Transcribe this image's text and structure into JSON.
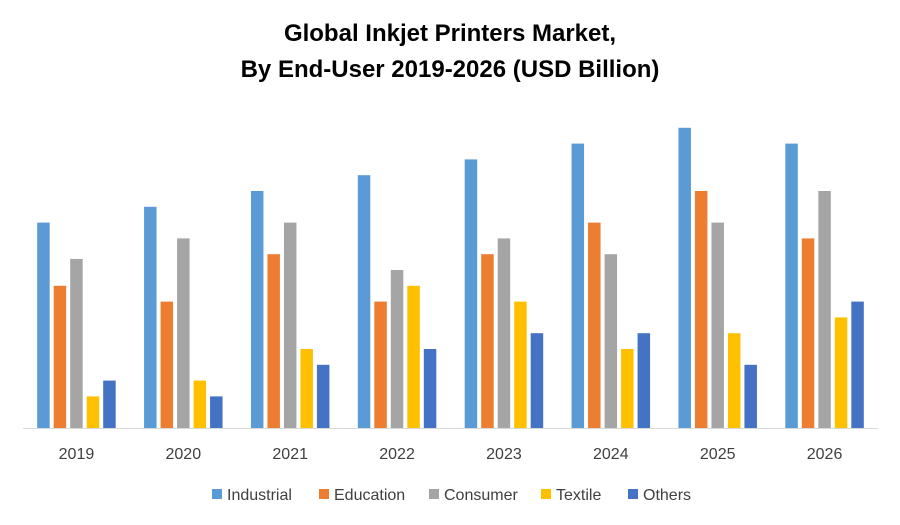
{
  "title_lines": [
    "Global Inkjet Printers Market,",
    "By End-User 2019-2026 (USD Billion)"
  ],
  "chart_data": {
    "type": "bar",
    "title": "Global Inkjet Printers Market, By End-User 2019-2026 (USD Billion)",
    "xlabel": "",
    "ylabel": "",
    "categories": [
      "2019",
      "2020",
      "2021",
      "2022",
      "2023",
      "2024",
      "2025",
      "2026"
    ],
    "ylim": [
      0,
      20
    ],
    "grid": false,
    "legend_position": "bottom",
    "series": [
      {
        "name": "Industrial",
        "color": "#5B9BD5",
        "values": [
          13,
          14,
          15,
          16,
          17,
          18,
          19,
          18
        ]
      },
      {
        "name": "Education",
        "color": "#ED7D31",
        "values": [
          9,
          8,
          11,
          8,
          11,
          13,
          15,
          12
        ]
      },
      {
        "name": "Consumer",
        "color": "#A5A5A5",
        "values": [
          10.7,
          12,
          13,
          10,
          12,
          11,
          13,
          15
        ]
      },
      {
        "name": "Textile",
        "color": "#FFC000",
        "values": [
          2,
          3,
          5,
          9,
          8,
          5,
          6,
          7
        ]
      },
      {
        "name": "Others",
        "color": "#4472C4",
        "values": [
          3,
          2,
          4,
          5,
          6,
          6,
          4,
          8
        ]
      }
    ]
  }
}
